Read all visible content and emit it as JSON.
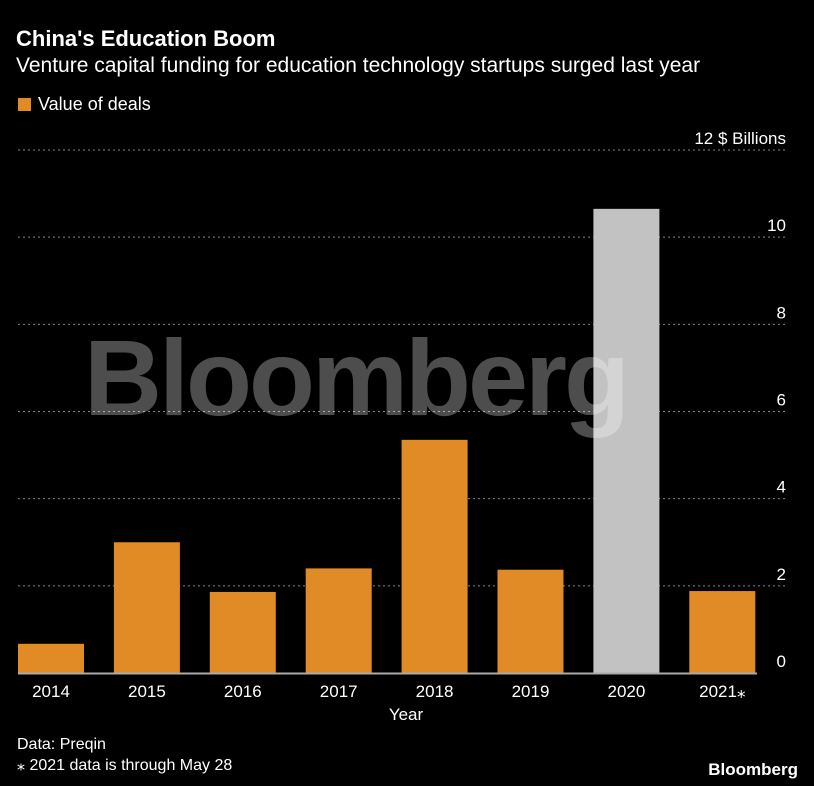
{
  "header": {
    "title": "China's Education Boom",
    "subtitle": "Venture capital funding for education technology startups surged last year"
  },
  "footer": {
    "source": "Data: Preqin",
    "note": "⁎ 2021 data is through May 28",
    "logo": "Bloomberg"
  },
  "watermark": "Bloomberg",
  "chart_data": {
    "type": "bar",
    "title": "China's Education Boom",
    "subtitle": "Venture capital funding for education technology startups surged last year",
    "xlabel": "Year",
    "ylabel": "$ Billions",
    "unit_label": "$ Billions",
    "legend": [
      "Value of deals"
    ],
    "legend_position": "top-left",
    "categories": [
      "2014",
      "2015",
      "2016",
      "2017",
      "2018",
      "2019",
      "2020",
      "2021⁎"
    ],
    "values": [
      0.67,
      3.0,
      1.86,
      2.4,
      5.35,
      2.37,
      10.65,
      1.88
    ],
    "highlight_index": 6,
    "ylim": [
      0,
      12
    ],
    "yticks": [
      0,
      2,
      4,
      6,
      8,
      10,
      12
    ],
    "grid": true,
    "colors": {
      "bar": "#e08b25",
      "highlight": "#c2c2c2",
      "grid": "#888888"
    }
  }
}
